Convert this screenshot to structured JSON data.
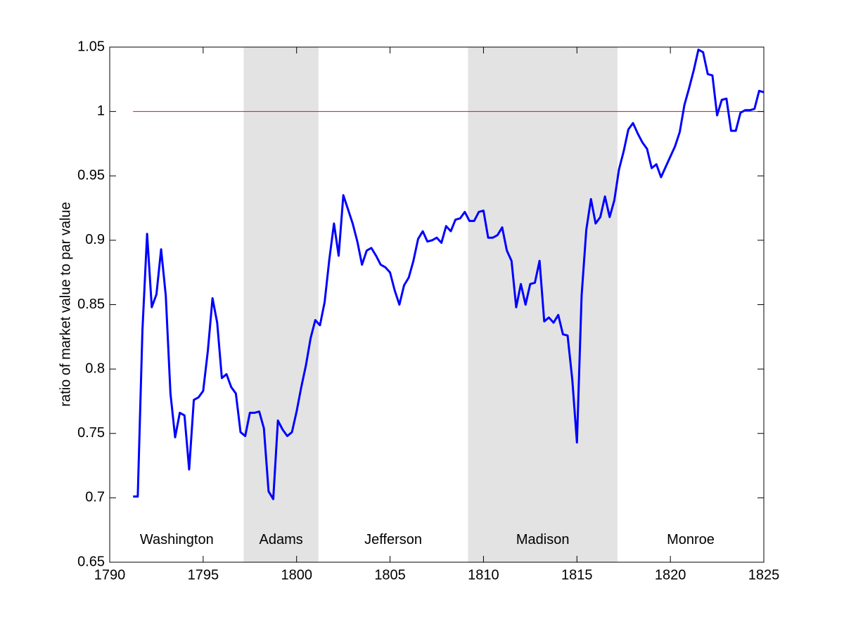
{
  "chart_data": {
    "type": "line",
    "ylabel": "ratio of market value to par value",
    "xlim": [
      1790,
      1825
    ],
    "xticks": [
      1790,
      1795,
      1800,
      1805,
      1810,
      1815,
      1820,
      1825
    ],
    "ylim": [
      0.65,
      1.05
    ],
    "yticks": [
      0.65,
      0.7,
      0.75,
      0.8,
      0.85,
      0.9,
      0.95,
      1,
      1.05
    ],
    "shade_color": "#e3e3e3",
    "terms": [
      {
        "name": "Washington",
        "start": 1789.33,
        "end": 1797.17,
        "shaded": false
      },
      {
        "name": "Adams",
        "start": 1797.17,
        "end": 1801.17,
        "shaded": true
      },
      {
        "name": "Jefferson",
        "start": 1801.17,
        "end": 1809.17,
        "shaded": false
      },
      {
        "name": "Madison",
        "start": 1809.17,
        "end": 1817.17,
        "shaded": true
      },
      {
        "name": "Monroe",
        "start": 1817.17,
        "end": 1825.17,
        "shaded": false
      }
    ],
    "term_label_y": 0.667,
    "reference_line": {
      "value": 1,
      "start": 1791.25,
      "color": "#ff0000"
    },
    "x": [
      1791.25,
      1791.5,
      1791.75,
      1792,
      1792.25,
      1792.5,
      1792.75,
      1793,
      1793.25,
      1793.5,
      1793.75,
      1794,
      1794.25,
      1794.5,
      1794.75,
      1795,
      1795.25,
      1795.5,
      1795.75,
      1796,
      1796.25,
      1796.5,
      1796.75,
      1797,
      1797.25,
      1797.5,
      1797.75,
      1798,
      1798.25,
      1798.5,
      1798.75,
      1799,
      1799.25,
      1799.5,
      1799.75,
      1800,
      1800.25,
      1800.5,
      1800.75,
      1801,
      1801.25,
      1801.5,
      1801.75,
      1802,
      1802.25,
      1802.5,
      1802.75,
      1803,
      1803.25,
      1803.5,
      1803.75,
      1804,
      1804.25,
      1804.5,
      1804.75,
      1805,
      1805.25,
      1805.5,
      1805.75,
      1806,
      1806.25,
      1806.5,
      1806.75,
      1807,
      1807.25,
      1807.5,
      1807.75,
      1808,
      1808.25,
      1808.5,
      1808.75,
      1809,
      1809.25,
      1809.5,
      1809.75,
      1810,
      1810.25,
      1810.5,
      1810.75,
      1811,
      1811.25,
      1811.5,
      1811.75,
      1812,
      1812.25,
      1812.5,
      1812.75,
      1813,
      1813.25,
      1813.5,
      1813.75,
      1814,
      1814.25,
      1814.5,
      1814.75,
      1815,
      1815.25,
      1815.5,
      1815.75,
      1816,
      1816.25,
      1816.5,
      1816.75,
      1817,
      1817.25,
      1817.5,
      1817.75,
      1818,
      1818.25,
      1818.5,
      1818.75,
      1819,
      1819.25,
      1819.5,
      1819.75,
      1820,
      1820.25,
      1820.5,
      1820.75,
      1821,
      1821.25,
      1821.5,
      1821.75,
      1822,
      1822.25,
      1822.5,
      1822.75,
      1823,
      1823.25,
      1823.5,
      1823.75,
      1824,
      1824.25,
      1824.5,
      1824.75,
      1825
    ],
    "series": [
      {
        "color": "#0000ff",
        "values": [
          0.701,
          0.701,
          0.83,
          0.905,
          0.848,
          0.858,
          0.893,
          0.857,
          0.781,
          0.747,
          0.766,
          0.764,
          0.722,
          0.776,
          0.778,
          0.783,
          0.814,
          0.855,
          0.836,
          0.793,
          0.796,
          0.786,
          0.781,
          0.751,
          0.748,
          0.766,
          0.766,
          0.767,
          0.754,
          0.705,
          0.699,
          0.76,
          0.753,
          0.748,
          0.751,
          0.767,
          0.786,
          0.803,
          0.824,
          0.838,
          0.834,
          0.852,
          0.885,
          0.913,
          0.888,
          0.935,
          0.924,
          0.913,
          0.899,
          0.881,
          0.892,
          0.894,
          0.888,
          0.881,
          0.879,
          0.875,
          0.861,
          0.85,
          0.865,
          0.871,
          0.884,
          0.901,
          0.907,
          0.899,
          0.9,
          0.902,
          0.898,
          0.911,
          0.907,
          0.916,
          0.917,
          0.922,
          0.915,
          0.915,
          0.922,
          0.923,
          0.902,
          0.902,
          0.904,
          0.91,
          0.892,
          0.884,
          0.848,
          0.866,
          0.85,
          0.866,
          0.867,
          0.884,
          0.837,
          0.84,
          0.836,
          0.842,
          0.827,
          0.826,
          0.792,
          0.743,
          0.857,
          0.908,
          0.932,
          0.913,
          0.918,
          0.934,
          0.918,
          0.931,
          0.955,
          0.969,
          0.986,
          0.991,
          0.983,
          0.976,
          0.971,
          0.956,
          0.959,
          0.949,
          0.957,
          0.965,
          0.973,
          0.984,
          1.005,
          1.018,
          1.032,
          1.048,
          1.046,
          1.029,
          1.028,
          0.997,
          1.009,
          1.01,
          0.985,
          0.985,
          0.999,
          1.001,
          1.001,
          1.002,
          1.016,
          1.015
        ]
      }
    ]
  }
}
